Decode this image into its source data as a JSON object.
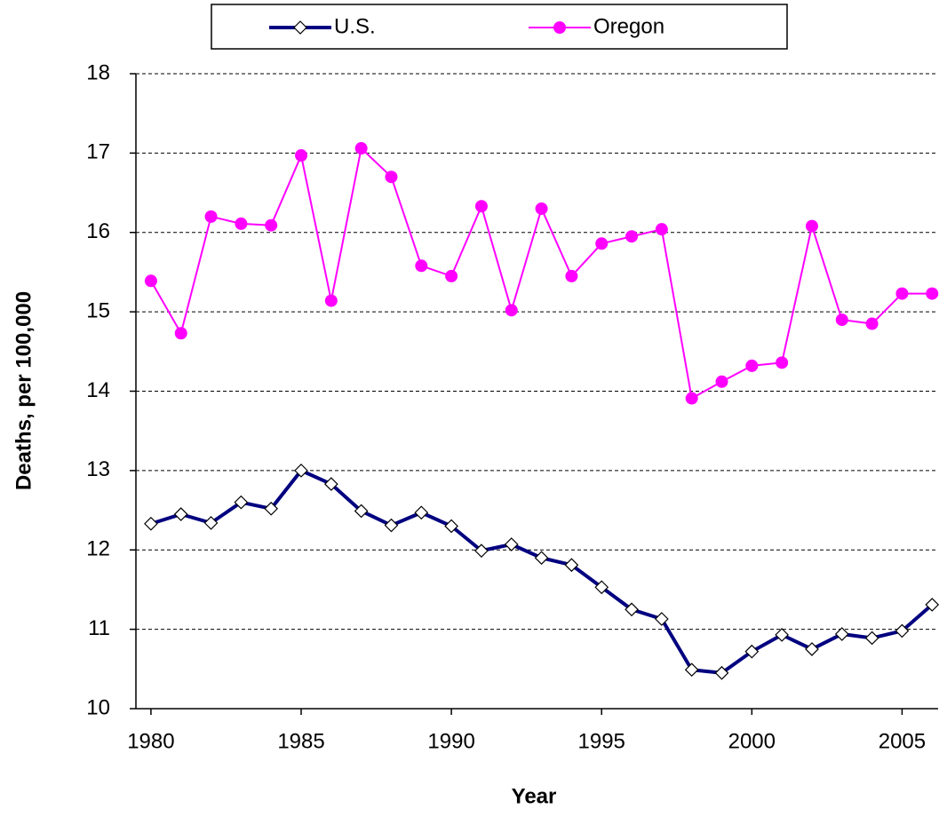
{
  "chart_data": {
    "type": "line",
    "x_label": "Year",
    "y_label": "Deaths, per 100,000",
    "x": [
      1980,
      1981,
      1982,
      1983,
      1984,
      1985,
      1986,
      1987,
      1988,
      1989,
      1990,
      1991,
      1992,
      1993,
      1994,
      1995,
      1996,
      1997,
      1998,
      1999,
      2000,
      2001,
      2002,
      2003,
      2004,
      2005,
      2006
    ],
    "series": [
      {
        "name": "U.S.",
        "color": "#000080",
        "marker": "diamond",
        "values": [
          12.33,
          12.45,
          12.34,
          12.6,
          12.52,
          13.0,
          12.83,
          12.49,
          12.31,
          12.47,
          12.3,
          11.99,
          12.07,
          11.9,
          11.81,
          11.53,
          11.25,
          11.13,
          10.49,
          10.45,
          10.72,
          10.93,
          10.75,
          10.94,
          10.89,
          10.98,
          11.31
        ]
      },
      {
        "name": "Oregon",
        "color": "#ff00ff",
        "marker": "circle",
        "values": [
          15.39,
          14.73,
          16.2,
          16.11,
          16.09,
          16.97,
          15.14,
          17.06,
          16.7,
          15.58,
          15.45,
          16.33,
          15.02,
          16.3,
          15.45,
          15.86,
          15.95,
          16.04,
          13.91,
          14.12,
          14.32,
          14.36,
          16.08,
          14.9,
          14.85,
          15.23,
          15.23
        ]
      }
    ],
    "xlim": [
      1979.5,
      2006.2
    ],
    "xticks": [
      1980,
      1985,
      1990,
      1995,
      2000,
      2005
    ],
    "ylim": [
      10,
      18
    ],
    "yticks": [
      10,
      11,
      12,
      13,
      14,
      15,
      16,
      17,
      18
    ],
    "grid": true,
    "legend": "top"
  }
}
